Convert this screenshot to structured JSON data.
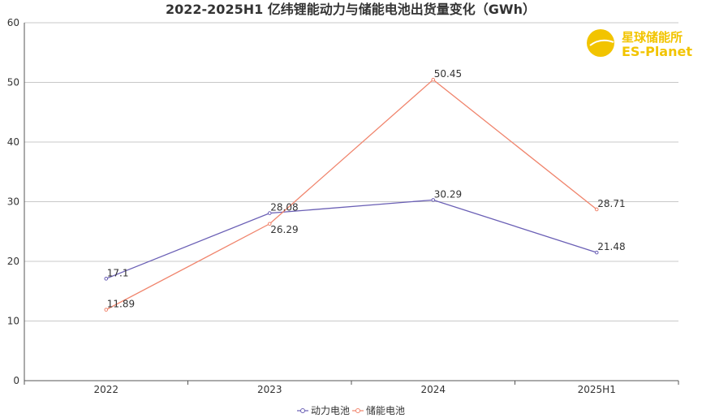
{
  "chart_data": {
    "type": "line",
    "title": "2022-2025H1 亿纬锂能动力与储能电池出货量变化（GWh）",
    "categories": [
      "2022",
      "2023",
      "2024",
      "2025H1"
    ],
    "ylim": [
      0,
      60
    ],
    "yticks": [
      "0",
      "10",
      "20",
      "30",
      "40",
      "50",
      "60"
    ],
    "grid": true,
    "legend_position": "bottom-center",
    "series": [
      {
        "name": "动力电池",
        "color": "#6a5fb5",
        "values": [
          17.1,
          28.08,
          30.29,
          21.48
        ],
        "labels": [
          "17.1",
          "28.08",
          "30.29",
          "21.48"
        ]
      },
      {
        "name": "储能电池",
        "color": "#f0846c",
        "values": [
          11.89,
          26.29,
          50.45,
          28.71
        ],
        "labels": [
          "11.89",
          "26.29",
          "50.45",
          "28.71"
        ]
      }
    ]
  },
  "logo": {
    "cn": "星球储能所",
    "en": "ES-Planet",
    "color": "#f2c400"
  }
}
